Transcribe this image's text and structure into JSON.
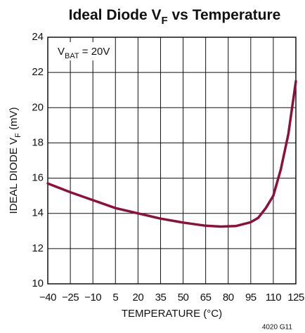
{
  "chart_data": {
    "type": "line",
    "title": [
      "Ideal Diode V",
      "F",
      " vs Temperature"
    ],
    "xlabel": "TEMPERATURE (°C)",
    "ylabel": [
      "IDEAL DIODE V",
      "F",
      " (mV)"
    ],
    "annotation": [
      "V",
      "BAT",
      " = 20V"
    ],
    "footnote": "4020 G11",
    "x": [
      -40,
      -25,
      -10,
      5,
      20,
      35,
      50,
      65,
      75,
      85,
      95,
      100,
      105,
      110,
      115,
      120,
      125
    ],
    "series": [
      {
        "color": "#8c0f3c",
        "values": [
          15.7,
          15.2,
          14.75,
          14.3,
          14.0,
          13.7,
          13.48,
          13.3,
          13.25,
          13.28,
          13.5,
          13.75,
          14.3,
          15.0,
          16.5,
          18.5,
          21.5
        ]
      }
    ],
    "xlim": [
      -40,
      125
    ],
    "xticks": [
      {
        "value": -40,
        "label": "−40"
      },
      {
        "value": -25,
        "label": "−25"
      },
      {
        "value": -10,
        "label": "−10"
      },
      5,
      20,
      35,
      50,
      65,
      80,
      95,
      110,
      125
    ],
    "ylim": [
      10,
      24
    ],
    "yticks": [
      10,
      12,
      14,
      16,
      18,
      20,
      22,
      24
    ],
    "grid": true
  }
}
